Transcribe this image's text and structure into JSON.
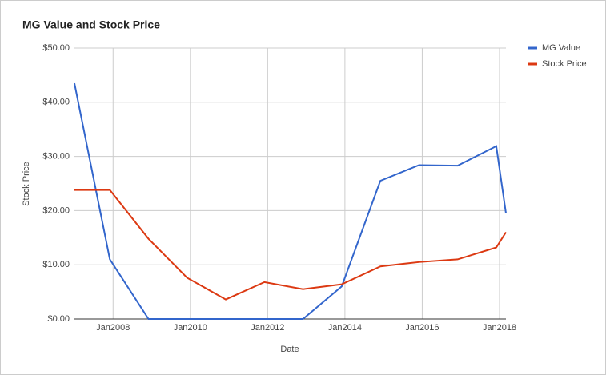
{
  "chart_data": {
    "type": "line",
    "title": "MG Value and Stock Price",
    "x_label": "Date",
    "y_label": "Stock Price",
    "x": [
      "2007-01",
      "2007-12",
      "2008-12",
      "2009-12",
      "2010-12",
      "2011-12",
      "2012-12",
      "2013-12",
      "2014-12",
      "2015-12",
      "2016-12",
      "2017-12",
      "2018-03"
    ],
    "series": [
      {
        "name": "MG Value",
        "color": "#3366cc",
        "values": [
          43.5,
          11,
          0,
          0,
          0,
          0,
          0,
          6,
          25.5,
          28.4,
          28.3,
          31.9,
          19.5
        ]
      },
      {
        "name": "Stock Price",
        "color": "#dc3912",
        "values": [
          23.8,
          23.8,
          14.8,
          7.6,
          3.6,
          6.8,
          5.5,
          6.4,
          9.7,
          10.5,
          11,
          13.2,
          16
        ]
      }
    ],
    "xlim": [
      "2007-01",
      "2018-03"
    ],
    "xticks": [
      {
        "value": "2008-01",
        "label": "Jan2008"
      },
      {
        "value": "2010-01",
        "label": "Jan2010"
      },
      {
        "value": "2012-01",
        "label": "Jan2012"
      },
      {
        "value": "2014-01",
        "label": "Jan2014"
      },
      {
        "value": "2016-01",
        "label": "Jan2016"
      },
      {
        "value": "2018-01",
        "label": "Jan2018"
      }
    ],
    "ylim": [
      0,
      50
    ],
    "yticks": [
      {
        "value": 0,
        "label": "$0.00"
      },
      {
        "value": 10,
        "label": "$10.00"
      },
      {
        "value": 20,
        "label": "$20.00"
      },
      {
        "value": 30,
        "label": "$30.00"
      },
      {
        "value": 40,
        "label": "$40.00"
      },
      {
        "value": 50,
        "label": "$50.00"
      }
    ],
    "grid": true,
    "legend": "right"
  }
}
